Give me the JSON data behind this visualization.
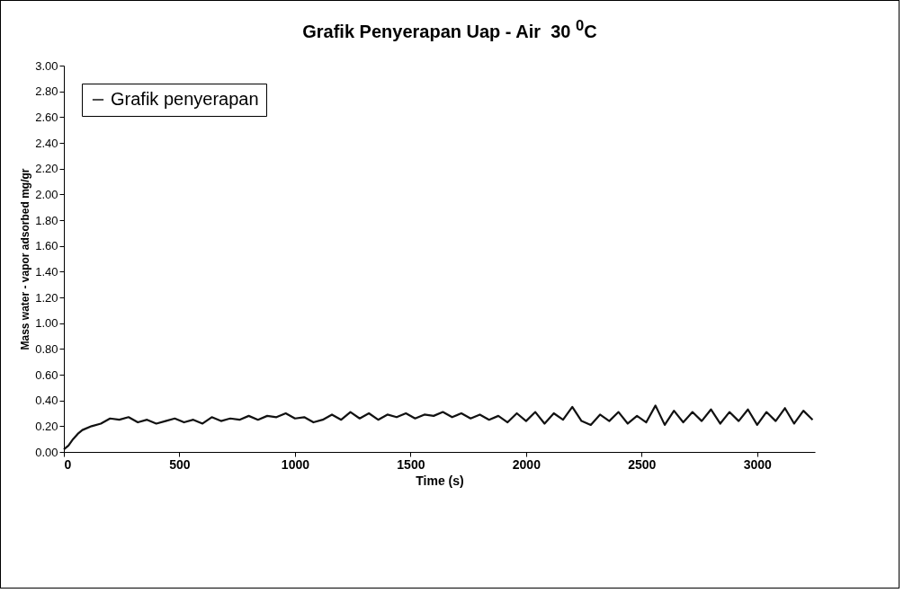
{
  "chart_data": {
    "type": "line",
    "title": "Grafik Penyerapan Uap - Air  30 $^{0}$C",
    "xlabel": "Time (s)",
    "ylabel": "Mass water - vapor adsorbed mg/gr",
    "x": [
      0,
      20,
      40,
      60,
      80,
      120,
      160,
      200,
      240,
      280,
      320,
      360,
      400,
      440,
      480,
      520,
      560,
      600,
      640,
      680,
      720,
      760,
      800,
      840,
      880,
      920,
      960,
      1000,
      1040,
      1080,
      1120,
      1160,
      1200,
      1240,
      1280,
      1320,
      1360,
      1400,
      1440,
      1480,
      1520,
      1560,
      1600,
      1640,
      1680,
      1720,
      1760,
      1800,
      1840,
      1880,
      1920,
      1960,
      2000,
      2040,
      2080,
      2120,
      2160,
      2200,
      2240,
      2280,
      2320,
      2360,
      2400,
      2440,
      2480,
      2520,
      2560,
      2600,
      2640,
      2680,
      2720,
      2760,
      2800,
      2840,
      2880,
      2920,
      2960,
      3000,
      3040,
      3080,
      3120,
      3160,
      3200,
      3240
    ],
    "series": [
      {
        "name": "Grafik penyerapan",
        "color": "#111111",
        "values": [
          0.02,
          0.05,
          0.1,
          0.14,
          0.17,
          0.2,
          0.22,
          0.26,
          0.25,
          0.27,
          0.23,
          0.25,
          0.22,
          0.24,
          0.26,
          0.23,
          0.25,
          0.22,
          0.27,
          0.24,
          0.26,
          0.25,
          0.28,
          0.25,
          0.28,
          0.27,
          0.3,
          0.26,
          0.27,
          0.23,
          0.25,
          0.29,
          0.25,
          0.31,
          0.26,
          0.3,
          0.25,
          0.29,
          0.27,
          0.3,
          0.26,
          0.29,
          0.28,
          0.31,
          0.27,
          0.3,
          0.26,
          0.29,
          0.25,
          0.28,
          0.23,
          0.3,
          0.24,
          0.31,
          0.22,
          0.3,
          0.25,
          0.35,
          0.24,
          0.21,
          0.29,
          0.24,
          0.31,
          0.22,
          0.28,
          0.23,
          0.36,
          0.21,
          0.32,
          0.23,
          0.31,
          0.24,
          0.33,
          0.22,
          0.31,
          0.24,
          0.33,
          0.21,
          0.31,
          0.24,
          0.34,
          0.22,
          0.32,
          0.25
        ]
      }
    ],
    "xlim": [
      0,
      3250
    ],
    "xticks": [
      0,
      500,
      1000,
      1500,
      2000,
      2500,
      3000
    ],
    "ylim": [
      0,
      3
    ],
    "yticks": [
      {
        "value": 0,
        "label": "0.00"
      },
      {
        "value": 0.2,
        "label": "0.20"
      },
      {
        "value": 0.4,
        "label": "0.40"
      },
      {
        "value": 0.6,
        "label": "0.60"
      },
      {
        "value": 0.8,
        "label": "0.80"
      },
      {
        "value": 1,
        "label": "1.00"
      },
      {
        "value": 1.2,
        "label": "1.20"
      },
      {
        "value": 1.4,
        "label": "1.40"
      },
      {
        "value": 1.6,
        "label": "1.60"
      },
      {
        "value": 1.8,
        "label": "1.80"
      },
      {
        "value": 2,
        "label": "2.00"
      },
      {
        "value": 2.2,
        "label": "2.20"
      },
      {
        "value": 2.4,
        "label": "2.40"
      },
      {
        "value": 2.6,
        "label": "2.60"
      },
      {
        "value": 2.8,
        "label": "2.80"
      },
      {
        "value": 3,
        "label": "3.00"
      }
    ],
    "legend": "top left",
    "grid": false
  }
}
